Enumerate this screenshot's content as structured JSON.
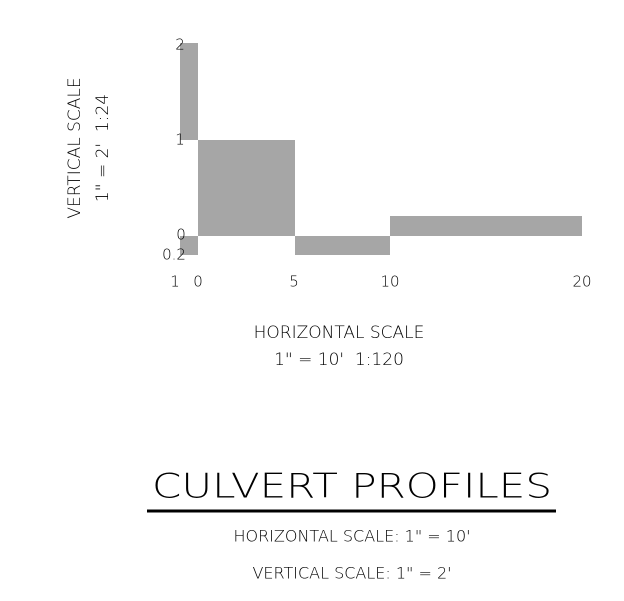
{
  "vertical_scale": {
    "title": "VERTICAL SCALE",
    "ratio": "1\" = 2'  1:24",
    "labels": [
      "2",
      "1",
      "0",
      "0.2"
    ]
  },
  "horizontal_scale": {
    "title": "HORIZONTAL SCALE",
    "ratio": "1\" = 10'  1:120",
    "labels": [
      "1",
      "0",
      "5",
      "10",
      "20"
    ]
  },
  "title": "CULVERT PROFILES",
  "notes": [
    "HORIZONTAL SCALE: 1\" = 10'",
    "VERTICAL SCALE: 1\" = 2'"
  ]
}
